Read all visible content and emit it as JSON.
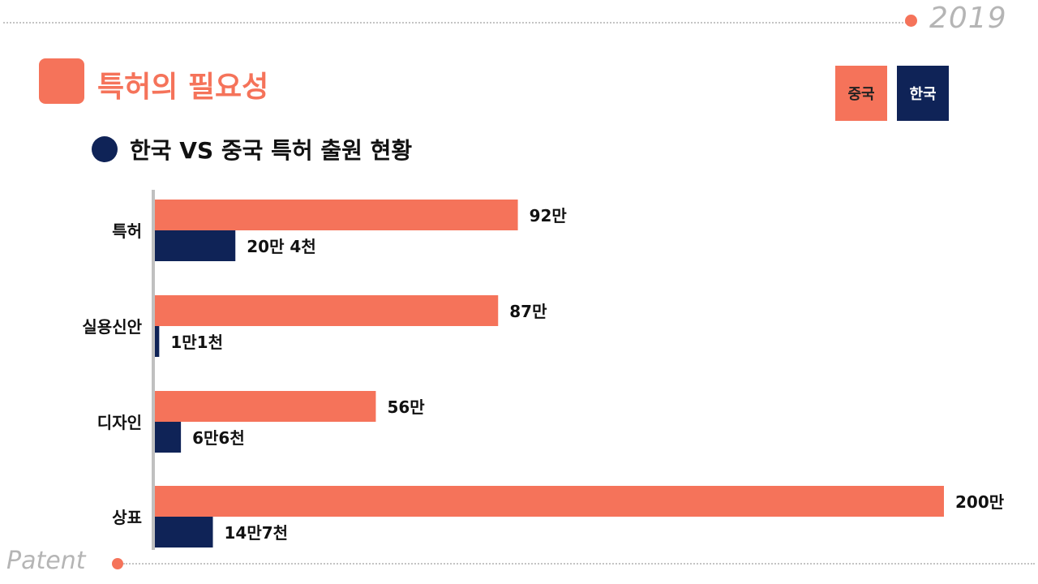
{
  "header": {
    "year": "2019",
    "title": "특허의 필요성",
    "footer": "Patent"
  },
  "subtitle": "한국 VS 중국 특허 출원 현황",
  "legend": {
    "china": "중국",
    "korea": "한국"
  },
  "colors": {
    "china": "#f5735a",
    "korea": "#0f2357",
    "axis": "#c0c0c0"
  },
  "chart_data": {
    "type": "bar",
    "orientation": "horizontal",
    "categories": [
      "특허",
      "실용신안",
      "디자인",
      "상표"
    ],
    "series": [
      {
        "name": "중국",
        "values": [
          920000,
          870000,
          560000,
          2000000
        ],
        "labels": [
          "92만",
          "87만",
          "56만",
          "200만"
        ]
      },
      {
        "name": "한국",
        "values": [
          204000,
          11000,
          66000,
          147000
        ],
        "labels": [
          "20만 4천",
          "1만1천",
          "6만6천",
          "14만7천"
        ]
      }
    ],
    "xlim": [
      0,
      2000000
    ],
    "grid": false,
    "legend_position": "top-right"
  }
}
